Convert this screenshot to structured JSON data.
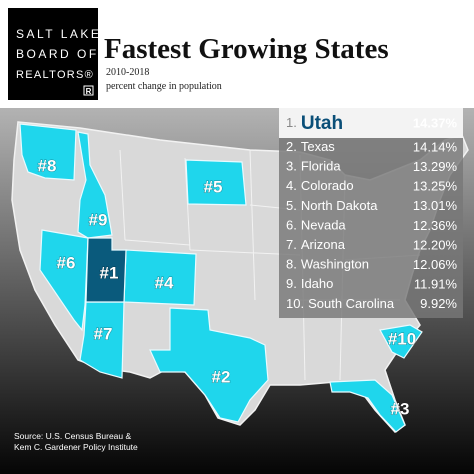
{
  "logo": {
    "lines": [
      "SALT LAKE",
      "BOARD OF",
      "REALTORS®"
    ],
    "mark": "R"
  },
  "header": {
    "title": "Fastest Growing States",
    "years": "2010-2018",
    "subtitle": "percent change in population"
  },
  "rankings": [
    {
      "rank": "1.",
      "state": "Utah",
      "change": "14.37%"
    },
    {
      "rank": "2.",
      "state": "Texas",
      "change": "14.14%"
    },
    {
      "rank": "3.",
      "state": "Florida",
      "change": "13.29%"
    },
    {
      "rank": "4.",
      "state": "Colorado",
      "change": "13.25%"
    },
    {
      "rank": "5.",
      "state": "North Dakota",
      "change": "13.01%"
    },
    {
      "rank": "6.",
      "state": "Nevada",
      "change": "12.36%"
    },
    {
      "rank": "7.",
      "state": "Arizona",
      "change": "12.20%"
    },
    {
      "rank": "8.",
      "state": "Washington",
      "change": "12.06%"
    },
    {
      "rank": "9.",
      "state": "Idaho",
      "change": "11.91%"
    },
    {
      "rank": "10.",
      "state": "South Carolina",
      "change": "9.92%"
    }
  ],
  "map_labels": [
    "#1",
    "#2",
    "#3",
    "#4",
    "#5",
    "#6",
    "#7",
    "#8",
    "#9",
    "#10"
  ],
  "source": [
    "Source: U.S. Census Bureau &",
    "Kem C. Gardener Policy Institute"
  ]
}
